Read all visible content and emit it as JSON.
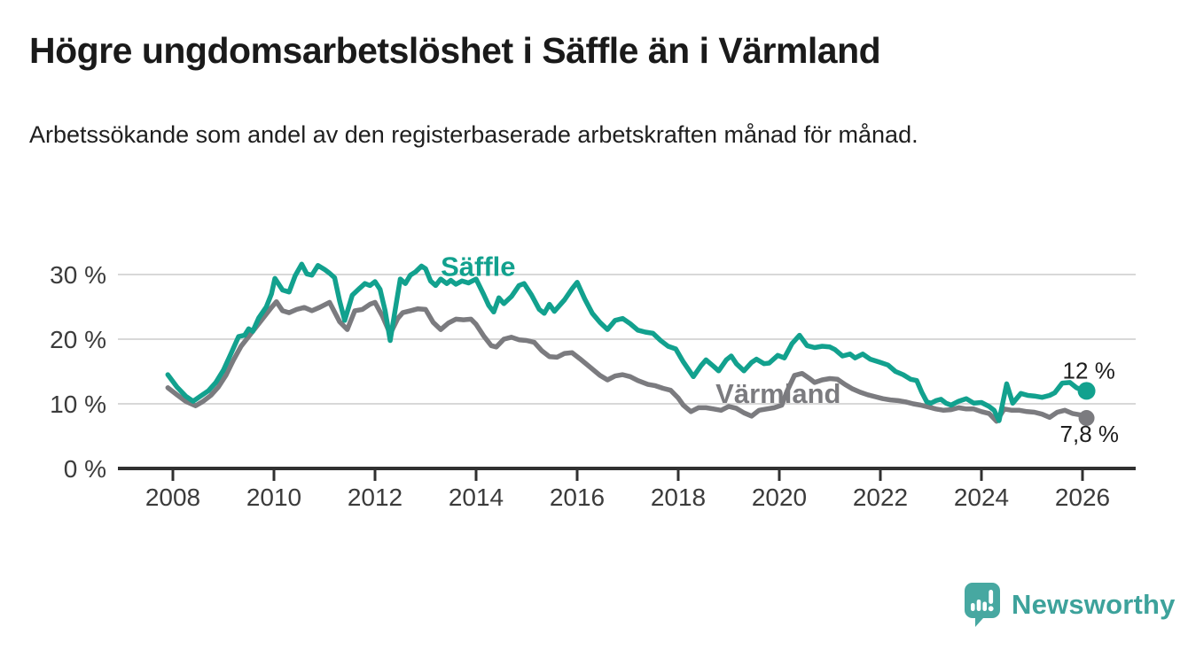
{
  "header": {
    "title": "Högre ungdomsarbetslöshet i Säffle än i Värmland",
    "subtitle": "Arbetssökande som andel av den registerbaserade arbetskraften månad för månad."
  },
  "footer": {
    "brand_name": "Newsworthy"
  },
  "colors": {
    "saffle_teal": "#12a18e",
    "varmland_gray": "#7b7b7f",
    "gridline": "#d8d8d8",
    "axis": "#303030",
    "tick_label": "#3b3b3b",
    "end_label": "#1e1e1e",
    "logo_teal": "#47a8a1"
  },
  "chart_data": {
    "type": "line",
    "title": "Högre ungdomsarbetslöshet i Säffle än i Värmland",
    "subtitle": "Arbetssökande som andel av den registerbaserade arbetskraften månad för månad.",
    "xlabel": "",
    "ylabel": "",
    "xlim": [
      2006.9,
      2027.05
    ],
    "ylim": [
      0,
      33
    ],
    "grid": "horizontal",
    "legend_position": "inline-labels",
    "y_ticks": [
      {
        "value": 0,
        "label": "0 %"
      },
      {
        "value": 10,
        "label": "10 %"
      },
      {
        "value": 20,
        "label": "20 %"
      },
      {
        "value": 30,
        "label": "30 %"
      }
    ],
    "x_ticks": [
      {
        "value": 2008,
        "label": "2008"
      },
      {
        "value": 2010,
        "label": "2010"
      },
      {
        "value": 2012,
        "label": "2012"
      },
      {
        "value": 2014,
        "label": "2014"
      },
      {
        "value": 2016,
        "label": "2016"
      },
      {
        "value": 2018,
        "label": "2018"
      },
      {
        "value": 2020,
        "label": "2020"
      },
      {
        "value": 2022,
        "label": "2022"
      },
      {
        "value": 2024,
        "label": "2024"
      },
      {
        "value": 2026,
        "label": "2026"
      }
    ],
    "series": [
      {
        "name": "Värmland",
        "color": "#7b7b7f",
        "end_label": "7,8 %",
        "end_value": 7.8,
        "label_at": [
          2018.74,
          10.15
        ],
        "points": [
          [
            2007.9,
            12.5
          ],
          [
            2008.08,
            11.4
          ],
          [
            2008.25,
            10.4
          ],
          [
            2008.45,
            9.7
          ],
          [
            2008.6,
            10.4
          ],
          [
            2008.75,
            11.3
          ],
          [
            2008.9,
            12.6
          ],
          [
            2009.05,
            14.4
          ],
          [
            2009.2,
            16.8
          ],
          [
            2009.35,
            18.9
          ],
          [
            2009.5,
            20.4
          ],
          [
            2009.65,
            21.9
          ],
          [
            2009.8,
            23.4
          ],
          [
            2009.95,
            24.9
          ],
          [
            2010.05,
            25.8
          ],
          [
            2010.17,
            24.4
          ],
          [
            2010.3,
            24.1
          ],
          [
            2010.45,
            24.6
          ],
          [
            2010.6,
            24.9
          ],
          [
            2010.75,
            24.4
          ],
          [
            2010.9,
            24.9
          ],
          [
            2011.0,
            25.3
          ],
          [
            2011.1,
            25.7
          ],
          [
            2011.3,
            22.7
          ],
          [
            2011.45,
            21.5
          ],
          [
            2011.6,
            24.4
          ],
          [
            2011.75,
            24.6
          ],
          [
            2011.9,
            25.4
          ],
          [
            2012.0,
            25.7
          ],
          [
            2012.15,
            23.5
          ],
          [
            2012.3,
            20.8
          ],
          [
            2012.45,
            23.2
          ],
          [
            2012.55,
            24.1
          ],
          [
            2012.7,
            24.4
          ],
          [
            2012.85,
            24.7
          ],
          [
            2013.0,
            24.6
          ],
          [
            2013.15,
            22.6
          ],
          [
            2013.3,
            21.5
          ],
          [
            2013.45,
            22.5
          ],
          [
            2013.6,
            23.1
          ],
          [
            2013.75,
            23.0
          ],
          [
            2013.9,
            23.1
          ],
          [
            2014.0,
            22.3
          ],
          [
            2014.15,
            20.5
          ],
          [
            2014.3,
            19.0
          ],
          [
            2014.4,
            18.8
          ],
          [
            2014.55,
            20.0
          ],
          [
            2014.7,
            20.3
          ],
          [
            2014.85,
            19.9
          ],
          [
            2015.0,
            19.8
          ],
          [
            2015.15,
            19.5
          ],
          [
            2015.3,
            18.2
          ],
          [
            2015.45,
            17.3
          ],
          [
            2015.6,
            17.2
          ],
          [
            2015.75,
            17.8
          ],
          [
            2015.9,
            17.9
          ],
          [
            2016.05,
            17.0
          ],
          [
            2016.25,
            15.7
          ],
          [
            2016.45,
            14.4
          ],
          [
            2016.6,
            13.7
          ],
          [
            2016.75,
            14.3
          ],
          [
            2016.9,
            14.5
          ],
          [
            2017.05,
            14.2
          ],
          [
            2017.2,
            13.6
          ],
          [
            2017.4,
            13.0
          ],
          [
            2017.55,
            12.8
          ],
          [
            2017.7,
            12.4
          ],
          [
            2017.85,
            12.1
          ],
          [
            2018.0,
            10.9
          ],
          [
            2018.1,
            9.8
          ],
          [
            2018.25,
            8.8
          ],
          [
            2018.4,
            9.4
          ],
          [
            2018.55,
            9.4
          ],
          [
            2018.7,
            9.2
          ],
          [
            2018.85,
            9.0
          ],
          [
            2019.0,
            9.6
          ],
          [
            2019.15,
            9.3
          ],
          [
            2019.3,
            8.6
          ],
          [
            2019.45,
            8.1
          ],
          [
            2019.6,
            9.0
          ],
          [
            2019.75,
            9.2
          ],
          [
            2019.9,
            9.4
          ],
          [
            2020.05,
            9.8
          ],
          [
            2020.15,
            11.9
          ],
          [
            2020.3,
            14.4
          ],
          [
            2020.45,
            14.7
          ],
          [
            2020.6,
            13.9
          ],
          [
            2020.7,
            13.3
          ],
          [
            2020.85,
            13.7
          ],
          [
            2021.0,
            13.9
          ],
          [
            2021.15,
            13.8
          ],
          [
            2021.3,
            13.0
          ],
          [
            2021.45,
            12.3
          ],
          [
            2021.6,
            11.8
          ],
          [
            2021.75,
            11.4
          ],
          [
            2021.9,
            11.1
          ],
          [
            2022.05,
            10.8
          ],
          [
            2022.2,
            10.6
          ],
          [
            2022.35,
            10.5
          ],
          [
            2022.5,
            10.3
          ],
          [
            2022.65,
            10.0
          ],
          [
            2022.8,
            9.8
          ],
          [
            2022.95,
            9.5
          ],
          [
            2023.1,
            9.2
          ],
          [
            2023.25,
            9.0
          ],
          [
            2023.4,
            9.1
          ],
          [
            2023.55,
            9.4
          ],
          [
            2023.7,
            9.2
          ],
          [
            2023.85,
            9.2
          ],
          [
            2024.0,
            8.8
          ],
          [
            2024.15,
            8.5
          ],
          [
            2024.3,
            7.3
          ],
          [
            2024.45,
            9.2
          ],
          [
            2024.6,
            9.0
          ],
          [
            2024.75,
            9.0
          ],
          [
            2024.9,
            8.8
          ],
          [
            2025.05,
            8.7
          ],
          [
            2025.2,
            8.4
          ],
          [
            2025.35,
            7.9
          ],
          [
            2025.5,
            8.7
          ],
          [
            2025.65,
            9.0
          ],
          [
            2025.8,
            8.5
          ],
          [
            2025.95,
            8.3
          ],
          [
            2026.08,
            7.8
          ]
        ]
      },
      {
        "name": "Säffle",
        "color": "#12a18e",
        "end_label": "12 %",
        "end_value": 12,
        "label_at": [
          2013.3,
          29.8
        ],
        "points": [
          [
            2007.9,
            14.5
          ],
          [
            2008.08,
            12.6
          ],
          [
            2008.25,
            11.2
          ],
          [
            2008.4,
            10.4
          ],
          [
            2008.55,
            11.2
          ],
          [
            2008.7,
            12.0
          ],
          [
            2008.85,
            13.3
          ],
          [
            2009.0,
            15.2
          ],
          [
            2009.15,
            17.8
          ],
          [
            2009.3,
            20.4
          ],
          [
            2009.42,
            20.6
          ],
          [
            2009.5,
            21.6
          ],
          [
            2009.58,
            21.2
          ],
          [
            2009.7,
            23.3
          ],
          [
            2009.85,
            25.0
          ],
          [
            2009.95,
            27.0
          ],
          [
            2010.02,
            29.4
          ],
          [
            2010.17,
            27.6
          ],
          [
            2010.3,
            27.3
          ],
          [
            2010.42,
            29.8
          ],
          [
            2010.55,
            31.6
          ],
          [
            2010.65,
            30.1
          ],
          [
            2010.75,
            29.9
          ],
          [
            2010.87,
            31.4
          ],
          [
            2011.0,
            30.8
          ],
          [
            2011.1,
            30.2
          ],
          [
            2011.2,
            29.5
          ],
          [
            2011.3,
            25.9
          ],
          [
            2011.4,
            22.9
          ],
          [
            2011.55,
            26.8
          ],
          [
            2011.7,
            27.9
          ],
          [
            2011.8,
            28.6
          ],
          [
            2011.9,
            28.3
          ],
          [
            2012.0,
            28.9
          ],
          [
            2012.1,
            27.7
          ],
          [
            2012.2,
            24.4
          ],
          [
            2012.3,
            19.8
          ],
          [
            2012.42,
            25.5
          ],
          [
            2012.5,
            29.3
          ],
          [
            2012.6,
            28.6
          ],
          [
            2012.7,
            29.9
          ],
          [
            2012.8,
            30.4
          ],
          [
            2012.92,
            31.3
          ],
          [
            2013.0,
            30.9
          ],
          [
            2013.1,
            29.0
          ],
          [
            2013.2,
            28.3
          ],
          [
            2013.3,
            29.3
          ],
          [
            2013.42,
            28.6
          ],
          [
            2013.5,
            29.1
          ],
          [
            2013.6,
            28.5
          ],
          [
            2013.72,
            29.0
          ],
          [
            2013.85,
            28.7
          ],
          [
            2014.0,
            29.3
          ],
          [
            2014.15,
            26.9
          ],
          [
            2014.25,
            25.2
          ],
          [
            2014.35,
            24.2
          ],
          [
            2014.45,
            26.4
          ],
          [
            2014.55,
            25.5
          ],
          [
            2014.7,
            26.6
          ],
          [
            2014.85,
            28.3
          ],
          [
            2014.95,
            28.6
          ],
          [
            2015.1,
            26.8
          ],
          [
            2015.25,
            24.6
          ],
          [
            2015.35,
            24.0
          ],
          [
            2015.45,
            25.4
          ],
          [
            2015.55,
            24.3
          ],
          [
            2015.75,
            26.1
          ],
          [
            2015.9,
            27.8
          ],
          [
            2016.0,
            28.8
          ],
          [
            2016.15,
            26.2
          ],
          [
            2016.3,
            24.0
          ],
          [
            2016.45,
            22.6
          ],
          [
            2016.6,
            21.5
          ],
          [
            2016.75,
            22.9
          ],
          [
            2016.9,
            23.2
          ],
          [
            2017.05,
            22.4
          ],
          [
            2017.2,
            21.4
          ],
          [
            2017.35,
            21.1
          ],
          [
            2017.5,
            20.9
          ],
          [
            2017.65,
            19.8
          ],
          [
            2017.8,
            18.9
          ],
          [
            2017.95,
            18.5
          ],
          [
            2018.1,
            16.5
          ],
          [
            2018.3,
            14.2
          ],
          [
            2018.45,
            15.9
          ],
          [
            2018.55,
            16.8
          ],
          [
            2018.7,
            15.8
          ],
          [
            2018.8,
            15.1
          ],
          [
            2018.95,
            16.8
          ],
          [
            2019.05,
            17.4
          ],
          [
            2019.15,
            16.2
          ],
          [
            2019.3,
            15.1
          ],
          [
            2019.45,
            16.4
          ],
          [
            2019.55,
            16.9
          ],
          [
            2019.7,
            16.2
          ],
          [
            2019.8,
            16.3
          ],
          [
            2019.97,
            17.5
          ],
          [
            2020.1,
            17.1
          ],
          [
            2020.25,
            19.3
          ],
          [
            2020.4,
            20.6
          ],
          [
            2020.55,
            19.0
          ],
          [
            2020.7,
            18.7
          ],
          [
            2020.85,
            18.9
          ],
          [
            2021.0,
            18.8
          ],
          [
            2021.1,
            18.4
          ],
          [
            2021.25,
            17.4
          ],
          [
            2021.4,
            17.7
          ],
          [
            2021.5,
            17.1
          ],
          [
            2021.65,
            17.7
          ],
          [
            2021.8,
            16.9
          ],
          [
            2022.0,
            16.4
          ],
          [
            2022.15,
            16.0
          ],
          [
            2022.3,
            15.0
          ],
          [
            2022.45,
            14.5
          ],
          [
            2022.6,
            13.8
          ],
          [
            2022.72,
            13.6
          ],
          [
            2022.82,
            11.8
          ],
          [
            2022.92,
            10.3
          ],
          [
            2023.0,
            10.1
          ],
          [
            2023.1,
            10.5
          ],
          [
            2023.2,
            10.7
          ],
          [
            2023.3,
            10.1
          ],
          [
            2023.4,
            9.8
          ],
          [
            2023.55,
            10.4
          ],
          [
            2023.7,
            10.8
          ],
          [
            2023.85,
            10.1
          ],
          [
            2024.0,
            10.2
          ],
          [
            2024.15,
            9.6
          ],
          [
            2024.25,
            9.0
          ],
          [
            2024.35,
            7.4
          ],
          [
            2024.5,
            13.1
          ],
          [
            2024.62,
            10.1
          ],
          [
            2024.78,
            11.6
          ],
          [
            2024.92,
            11.3
          ],
          [
            2025.05,
            11.2
          ],
          [
            2025.2,
            11.0
          ],
          [
            2025.35,
            11.3
          ],
          [
            2025.45,
            11.7
          ],
          [
            2025.6,
            13.2
          ],
          [
            2025.75,
            13.3
          ],
          [
            2025.88,
            12.5
          ],
          [
            2026.0,
            12.1
          ],
          [
            2026.08,
            12.0
          ]
        ]
      }
    ]
  }
}
